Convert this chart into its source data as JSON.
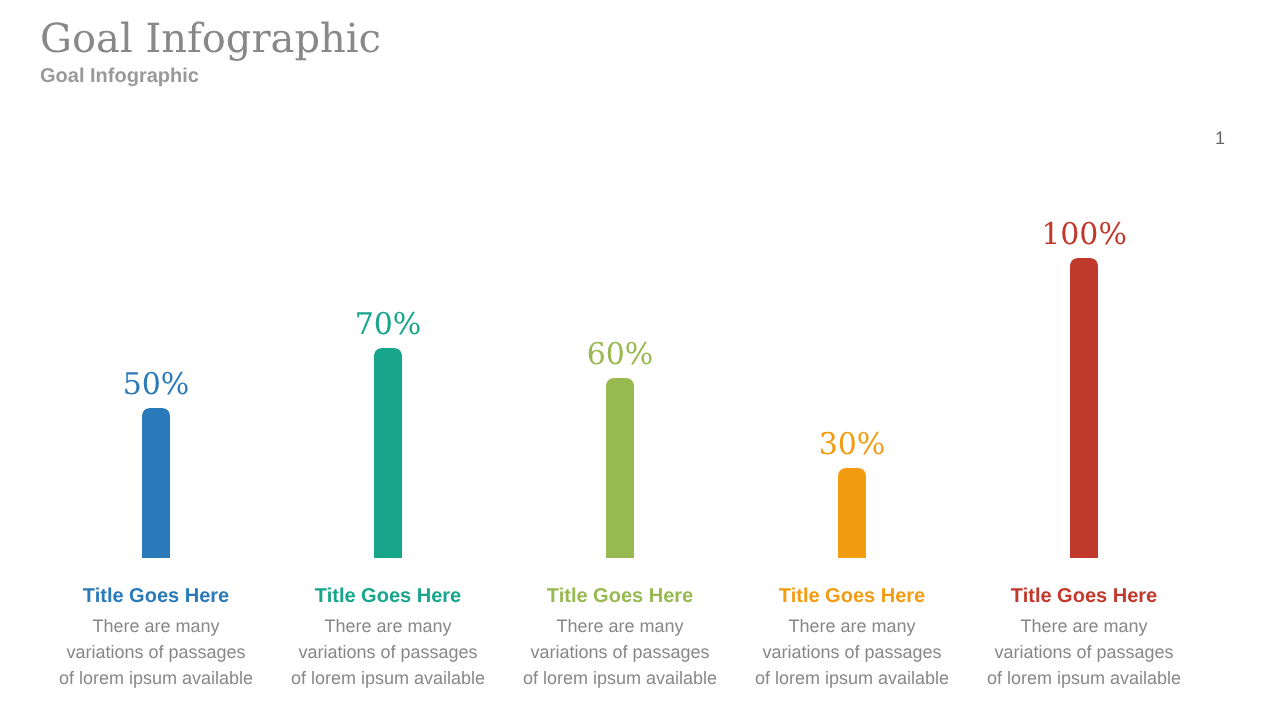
{
  "chart_data": {
    "type": "bar",
    "title": "Goal Infographic",
    "subtitle": "Goal Infographic",
    "categories": [
      "Title Goes Here",
      "Title Goes Here",
      "Title Goes Here",
      "Title Goes Here",
      "Title Goes Here"
    ],
    "values": [
      50,
      70,
      60,
      30,
      100
    ],
    "value_labels": [
      "50%",
      "70%",
      "60%",
      "30%",
      "100%"
    ],
    "colors": [
      "#2a7ab9",
      "#17a58c",
      "#97b94f",
      "#f39c12",
      "#c0392b"
    ],
    "annotations": [
      "There are many variations of passages of lorem ipsum available",
      "There are many variations of passages of lorem ipsum available",
      "There are many variations of passages of lorem ipsum available",
      "There are many variations of passages of lorem ipsum available",
      "There are many variations of passages of lorem ipsum available",
      "1"
    ],
    "data_labels": false
  }
}
